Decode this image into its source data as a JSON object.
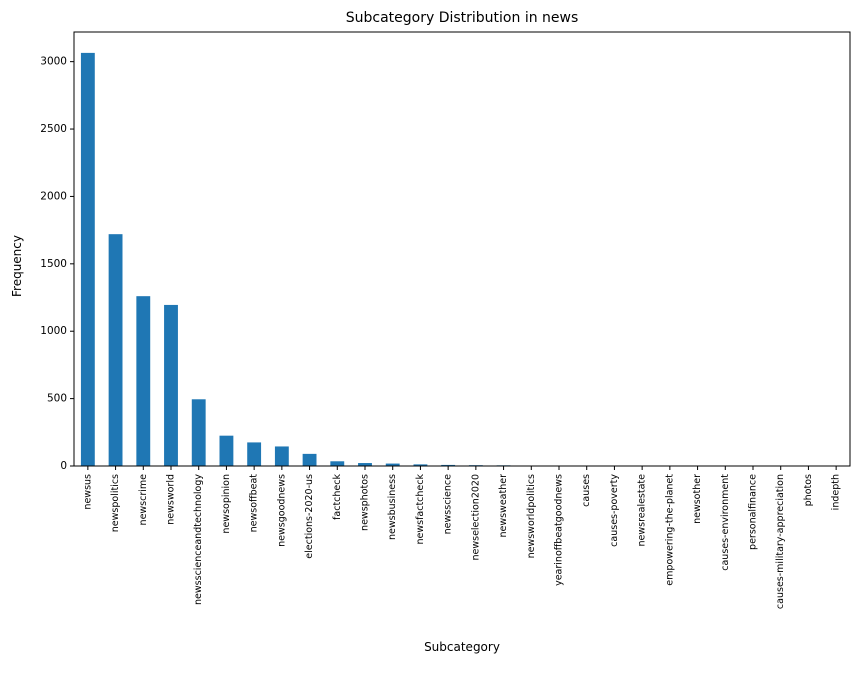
{
  "chart_data": {
    "type": "bar",
    "title": "Subcategory Distribution in news",
    "xlabel": "Subcategory",
    "ylabel": "Frequency",
    "ylim": [
      0,
      3220
    ],
    "yticks": [
      0,
      500,
      1000,
      1500,
      2000,
      2500,
      3000
    ],
    "grid": false,
    "legend": "none",
    "bar_color": "#1f77b4",
    "categories": [
      "newsus",
      "newspolitics",
      "newscrime",
      "newsworld",
      "newsscienceandtechnology",
      "newsopinion",
      "newsoffbeat",
      "newsgoodnews",
      "elections-2020-us",
      "factcheck",
      "newsphotos",
      "newsbusiness",
      "newsfactcheck",
      "newsscience",
      "newselection2020",
      "newsweather",
      "newsworldpolitics",
      "yearinoffbeatgoodnews",
      "causes",
      "causes-poverty",
      "newsrealestate",
      "empowering-the-planet",
      "newsother",
      "causes-environment",
      "personalfinance",
      "causes-military-appreciation",
      "photos",
      "indepth"
    ],
    "values": [
      3065,
      1720,
      1260,
      1195,
      495,
      225,
      175,
      145,
      90,
      35,
      22,
      18,
      12,
      8,
      6,
      5,
      2,
      1,
      1,
      1,
      1,
      1,
      1,
      1,
      1,
      1,
      1,
      1
    ]
  }
}
